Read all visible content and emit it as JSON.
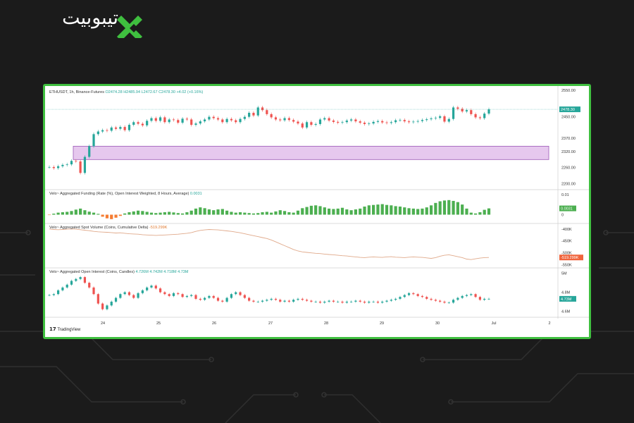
{
  "brand": {
    "name": "تیبوبیت",
    "accent": "#3fbf3f"
  },
  "chart_data": [
    {
      "type": "candlestick",
      "title": "ETHUSDT, 1h, Binance-Futures",
      "ohlc_label": {
        "o": "O2474.28",
        "h": "H2485.94",
        "l": "L2472.67",
        "c": "C2478.30",
        "chg": "+4.02 (+0.16%)"
      },
      "last_price": "2478.30",
      "x_ticks": [
        "24",
        "25",
        "26",
        "27",
        "28",
        "29",
        "30",
        "Jul",
        "2"
      ],
      "y_ticks": [
        "2550.00",
        "2450.00",
        "2370.00",
        "2320.00",
        "2260.00",
        "2200.00"
      ],
      "ylim": [
        2180,
        2560
      ],
      "highlight_zone": {
        "from": 2290,
        "to": 2340,
        "color": "#e6c8ee"
      },
      "close": [
        2262,
        2258,
        2265,
        2270,
        2272,
        2285,
        2283,
        2240,
        2300,
        2340,
        2385,
        2395,
        2400,
        2398,
        2410,
        2405,
        2412,
        2400,
        2420,
        2430,
        2424,
        2418,
        2435,
        2445,
        2435,
        2448,
        2430,
        2440,
        2438,
        2428,
        2443,
        2440,
        2420,
        2425,
        2433,
        2440,
        2450,
        2445,
        2440,
        2430,
        2442,
        2437,
        2430,
        2442,
        2450,
        2465,
        2455,
        2485,
        2475,
        2460,
        2448,
        2440,
        2437,
        2445,
        2438,
        2432,
        2425,
        2410,
        2430,
        2420,
        2423,
        2440,
        2445,
        2436,
        2431,
        2428,
        2430,
        2436,
        2440,
        2433,
        2428,
        2423,
        2425,
        2431,
        2434,
        2429,
        2427,
        2430,
        2437,
        2438,
        2433,
        2430,
        2432,
        2434,
        2438,
        2441,
        2444,
        2446,
        2452,
        2432,
        2442,
        2485,
        2480,
        2470,
        2475,
        2460,
        2448,
        2445,
        2462,
        2478
      ],
      "hl_highlow": "approximate OHLC derived from chart"
    },
    {
      "type": "bar",
      "title": "Velo~ Aggregated Funding (Rate (%), Open Interest Weighted, 8 Hours, Average)",
      "value_label": "0.0031",
      "y_ticks": [
        "0.01",
        "0"
      ],
      "ylim": [
        -0.004,
        0.012
      ],
      "values": [
        -0.0002,
        0.0005,
        0.001,
        0.0012,
        0.0014,
        0.0018,
        0.0025,
        0.003,
        0.0022,
        0.0015,
        0.001,
        0.0004,
        -0.001,
        -0.0018,
        -0.0022,
        -0.0015,
        -0.0006,
        0.0006,
        0.0012,
        0.0016,
        0.002,
        0.0018,
        0.0014,
        0.001,
        0.0008,
        0.001,
        0.0012,
        0.0014,
        0.0011,
        0.0008,
        0.0006,
        0.0012,
        0.002,
        0.003,
        0.0036,
        0.0032,
        0.0026,
        0.0022,
        0.0026,
        0.0028,
        0.002,
        0.0014,
        0.001,
        0.0012,
        0.001,
        0.0008,
        0.0006,
        0.0008,
        0.0012,
        0.0014,
        0.001,
        0.0016,
        0.0022,
        0.0018,
        0.0012,
        0.001,
        0.002,
        0.0032,
        0.0038,
        0.0044,
        0.0046,
        0.0042,
        0.0036,
        0.003,
        0.0028,
        0.003,
        0.0034,
        0.0026,
        0.0022,
        0.0026,
        0.003,
        0.004,
        0.0046,
        0.0048,
        0.005,
        0.0052,
        0.0048,
        0.0046,
        0.0042,
        0.004,
        0.0036,
        0.0032,
        0.003,
        0.0028,
        0.003,
        0.0036,
        0.0046,
        0.0058,
        0.0066,
        0.007,
        0.0072,
        0.0068,
        0.0062,
        0.005,
        0.003,
        0.001,
        0.0006,
        0.0012,
        0.0024,
        0.0031
      ]
    },
    {
      "type": "line",
      "title": "Velo~ Aggregated Spot Volume (Coins, Cumulative Delta)",
      "value_label": "-519.299K",
      "y_ticks": [
        "-400K",
        "-450K",
        "-500K",
        "-550K"
      ],
      "ylim": [
        -560000,
        -380000
      ],
      "values": [
        -400000,
        -402000,
        -403000,
        -402000,
        -401000,
        -400000,
        -401000,
        -403000,
        -405000,
        -407000,
        -410000,
        -412000,
        -413000,
        -414000,
        -415000,
        -417000,
        -416000,
        -418000,
        -420000,
        -421000,
        -422000,
        -424000,
        -425000,
        -426000,
        -427000,
        -426000,
        -425000,
        -424000,
        -423000,
        -422000,
        -420000,
        -418000,
        -415000,
        -410000,
        -406000,
        -404000,
        -402000,
        -403000,
        -404000,
        -406000,
        -408000,
        -410000,
        -413000,
        -416000,
        -420000,
        -424000,
        -428000,
        -432000,
        -436000,
        -440000,
        -446000,
        -454000,
        -462000,
        -470000,
        -478000,
        -486000,
        -492000,
        -496000,
        -498000,
        -500000,
        -502000,
        -503000,
        -505000,
        -507000,
        -508000,
        -510000,
        -512000,
        -513000,
        -515000,
        -517000,
        -519000,
        -520000,
        -518000,
        -517000,
        -518000,
        -519000,
        -517000,
        -516000,
        -518000,
        -519000,
        -520000,
        -518000,
        -517000,
        -518000,
        -519000,
        -521000,
        -523000,
        -520000,
        -514000,
        -510000,
        -508000,
        -512000,
        -516000,
        -520000,
        -526000,
        -528000,
        -525000,
        -522000,
        -520000,
        -519299
      ]
    },
    {
      "type": "candlestick",
      "title": "Velo~ Aggregated Open Interest (Coins, Candles)",
      "ohlc_label": {
        "o": "4.726M",
        "h": "4.742M",
        "l": "4.718M",
        "c": "4.73M"
      },
      "last_value": "4.73M",
      "y_ticks": [
        "5M",
        "4.8M",
        "4.6M"
      ],
      "ylim": [
        4.55,
        5.05
      ],
      "close": [
        4.77,
        4.78,
        4.82,
        4.85,
        4.88,
        4.92,
        4.94,
        4.96,
        4.9,
        4.85,
        4.78,
        4.68,
        4.62,
        4.66,
        4.7,
        4.74,
        4.78,
        4.8,
        4.77,
        4.74,
        4.79,
        4.82,
        4.85,
        4.87,
        4.84,
        4.8,
        4.78,
        4.76,
        4.79,
        4.78,
        4.75,
        4.76,
        4.77,
        4.73,
        4.72,
        4.74,
        4.76,
        4.74,
        4.71,
        4.7,
        4.74,
        4.78,
        4.8,
        4.77,
        4.74,
        4.71,
        4.7,
        4.7,
        4.71,
        4.72,
        4.73,
        4.72,
        4.7,
        4.71,
        4.7,
        4.72,
        4.73,
        4.72,
        4.71,
        4.7,
        4.7,
        4.69,
        4.7,
        4.71,
        4.7,
        4.7,
        4.69,
        4.7,
        4.7,
        4.71,
        4.7,
        4.69,
        4.7,
        4.7,
        4.69,
        4.7,
        4.71,
        4.72,
        4.73,
        4.75,
        4.77,
        4.79,
        4.78,
        4.76,
        4.75,
        4.73,
        4.72,
        4.71,
        4.7,
        4.69,
        4.69,
        4.72,
        4.74,
        4.76,
        4.77,
        4.78,
        4.75,
        4.72,
        4.73,
        4.73
      ]
    }
  ],
  "footer": {
    "brand": "TradingView",
    "logo": "17"
  }
}
